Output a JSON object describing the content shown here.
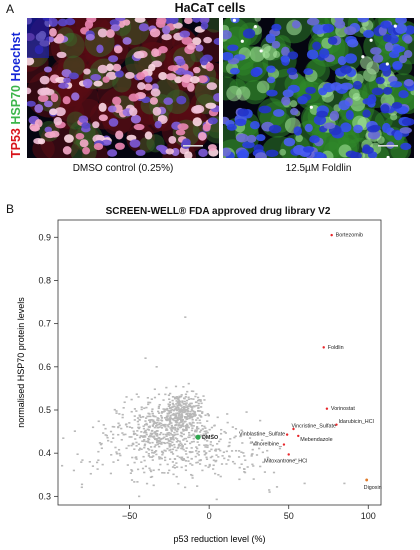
{
  "panel_a": {
    "letter": "A",
    "title": "HaCaT cells",
    "stain_labels": [
      {
        "text": "TP53",
        "color": "#d8141b"
      },
      {
        "text": "HSP70",
        "color": "#3bb54a"
      },
      {
        "text": "Hoechst",
        "color": "#1426d6"
      }
    ],
    "images": [
      {
        "caption": "DMSO control (0.25%)"
      },
      {
        "caption": "12.5µM Foldlin"
      }
    ]
  },
  "panel_b": {
    "letter": "B",
    "title": "SCREEN-WELL® FDA approved drug library V2"
  },
  "colors": {
    "background_points": "#b8b8b8",
    "hit_points": "#e8262a",
    "dmso_point": "#2fa84f",
    "digoxin_point": "#e07a2a"
  },
  "chart_data": {
    "type": "scatter",
    "title": "SCREEN-WELL® FDA approved drug library V2",
    "xlabel": "p53 reduction level (%)",
    "ylabel": "normalised HSP70 protein levels",
    "xlim": [
      -95,
      108
    ],
    "ylim": [
      0.28,
      0.94
    ],
    "xticks": [
      -50,
      0,
      50,
      100
    ],
    "yticks": [
      0.3,
      0.4,
      0.5,
      0.6,
      0.7,
      0.8,
      0.9
    ],
    "grid": false,
    "background_cloud": {
      "description": "",
      "n": 0
    },
    "labeled_points": [
      {
        "label": "Bortezomib",
        "x": 77,
        "y": 0.905,
        "kind": "hit"
      },
      {
        "label": "Foldlin",
        "x": 72,
        "y": 0.645,
        "kind": "hit"
      },
      {
        "label": "Vorinostat",
        "x": 74,
        "y": 0.503,
        "kind": "hit"
      },
      {
        "label": "Idarubicin_HCl",
        "x": 80,
        "y": 0.466,
        "kind": "hit"
      },
      {
        "label": "Vincristine_Sulfate",
        "x": 53,
        "y": 0.456,
        "kind": "hit"
      },
      {
        "label": "Vinblastine_Sulfate",
        "x": 49,
        "y": 0.443,
        "kind": "hit"
      },
      {
        "label": "Mebendazole",
        "x": 56,
        "y": 0.44,
        "kind": "hit"
      },
      {
        "label": "Vinorelbine_",
        "x": 47,
        "y": 0.42,
        "kind": "hit"
      },
      {
        "label": "Mitoxantrone_HCl",
        "x": 50,
        "y": 0.397,
        "kind": "hit"
      },
      {
        "label": "Digoxin",
        "x": 99,
        "y": 0.338,
        "kind": "digoxin"
      },
      {
        "label": "DMSO",
        "x": -7,
        "y": 0.437,
        "kind": "dmso"
      }
    ]
  }
}
